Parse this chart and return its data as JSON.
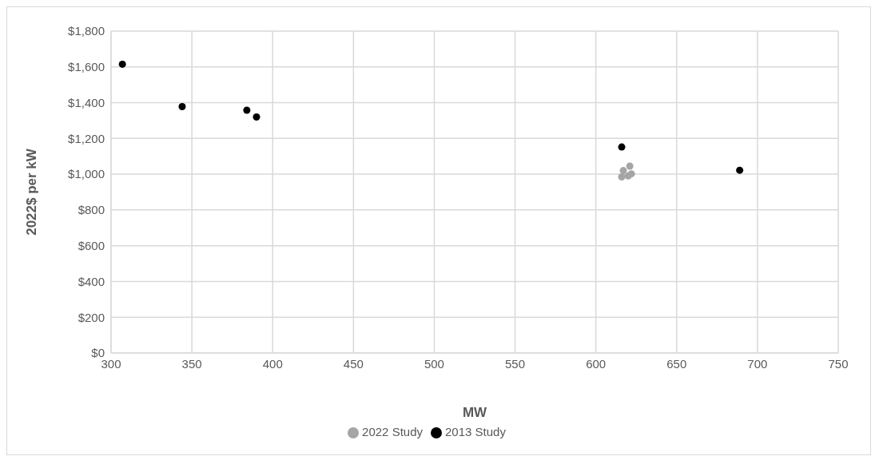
{
  "chart_data": {
    "type": "scatter",
    "xlabel": "MW",
    "ylabel": "2022$ per kW",
    "xlim": [
      300,
      750
    ],
    "xticks": [
      300,
      350,
      400,
      450,
      500,
      550,
      600,
      650,
      700,
      750
    ],
    "ylim": [
      0,
      1800
    ],
    "yticks": [
      {
        "value": 0,
        "label": "$0"
      },
      {
        "value": 200,
        "label": "$200"
      },
      {
        "value": 400,
        "label": "$400"
      },
      {
        "value": 600,
        "label": "$600"
      },
      {
        "value": 800,
        "label": "$800"
      },
      {
        "value": 1000,
        "label": "$1,000"
      },
      {
        "value": 1200,
        "label": "$1,200"
      },
      {
        "value": 1400,
        "label": "$1,400"
      },
      {
        "value": 1600,
        "label": "$1,600"
      },
      {
        "value": 1800,
        "label": "$1,800"
      }
    ],
    "grid": true,
    "legend": "bottom",
    "marker": "circle",
    "series": [
      {
        "name": "2022 Study",
        "color": "#a5a5a5",
        "x": [
          616,
          617,
          621,
          620,
          622
        ],
        "values": [
          985,
          1020,
          1045,
          990,
          1002
        ]
      },
      {
        "name": "2013 Study",
        "color": "#000000",
        "x": [
          307,
          344,
          384,
          390,
          616,
          689
        ],
        "values": [
          1615,
          1378,
          1358,
          1320,
          1152,
          1022
        ]
      }
    ]
  }
}
